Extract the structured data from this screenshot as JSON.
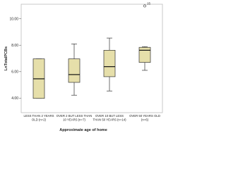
{
  "chart_data": {
    "type": "boxplot",
    "x_label": "Approximate age of home",
    "y_label": "LnTotalPCBs",
    "categories": [
      "LESS THAN 2 YEARS\nOLD (n=2)",
      "OVER 2 BUT LESS THAN\n10 YEARS (n=7)",
      "OVER 10 BUT LESS\nTHAN 50 YEARS (n=14)",
      "OVER 50 YEARS OLD\n(n=6)"
    ],
    "series": [
      {
        "color": "#e6dfaa",
        "min": [
          3.98,
          4.22,
          4.54,
          6.1
        ],
        "q1": [
          3.98,
          5.19,
          5.62,
          6.7
        ],
        "median": [
          5.46,
          5.78,
          6.38,
          7.62
        ],
        "q3": [
          6.97,
          6.97,
          7.62,
          7.84
        ],
        "max": [
          6.97,
          8.1,
          8.54,
          7.89
        ]
      }
    ],
    "outliers": [
      {
        "category": "OVER 50 YEARS OLD\n(n=6)",
        "value": 10.97,
        "label": "15"
      }
    ],
    "ylim": [
      2.9,
      11.1
    ],
    "yticks": [
      {
        "value": 4,
        "label": "4.00"
      },
      {
        "value": 6,
        "label": "6.00"
      },
      {
        "value": 8,
        "label": "8.00"
      },
      {
        "value": 10,
        "label": "10.00"
      }
    ]
  }
}
